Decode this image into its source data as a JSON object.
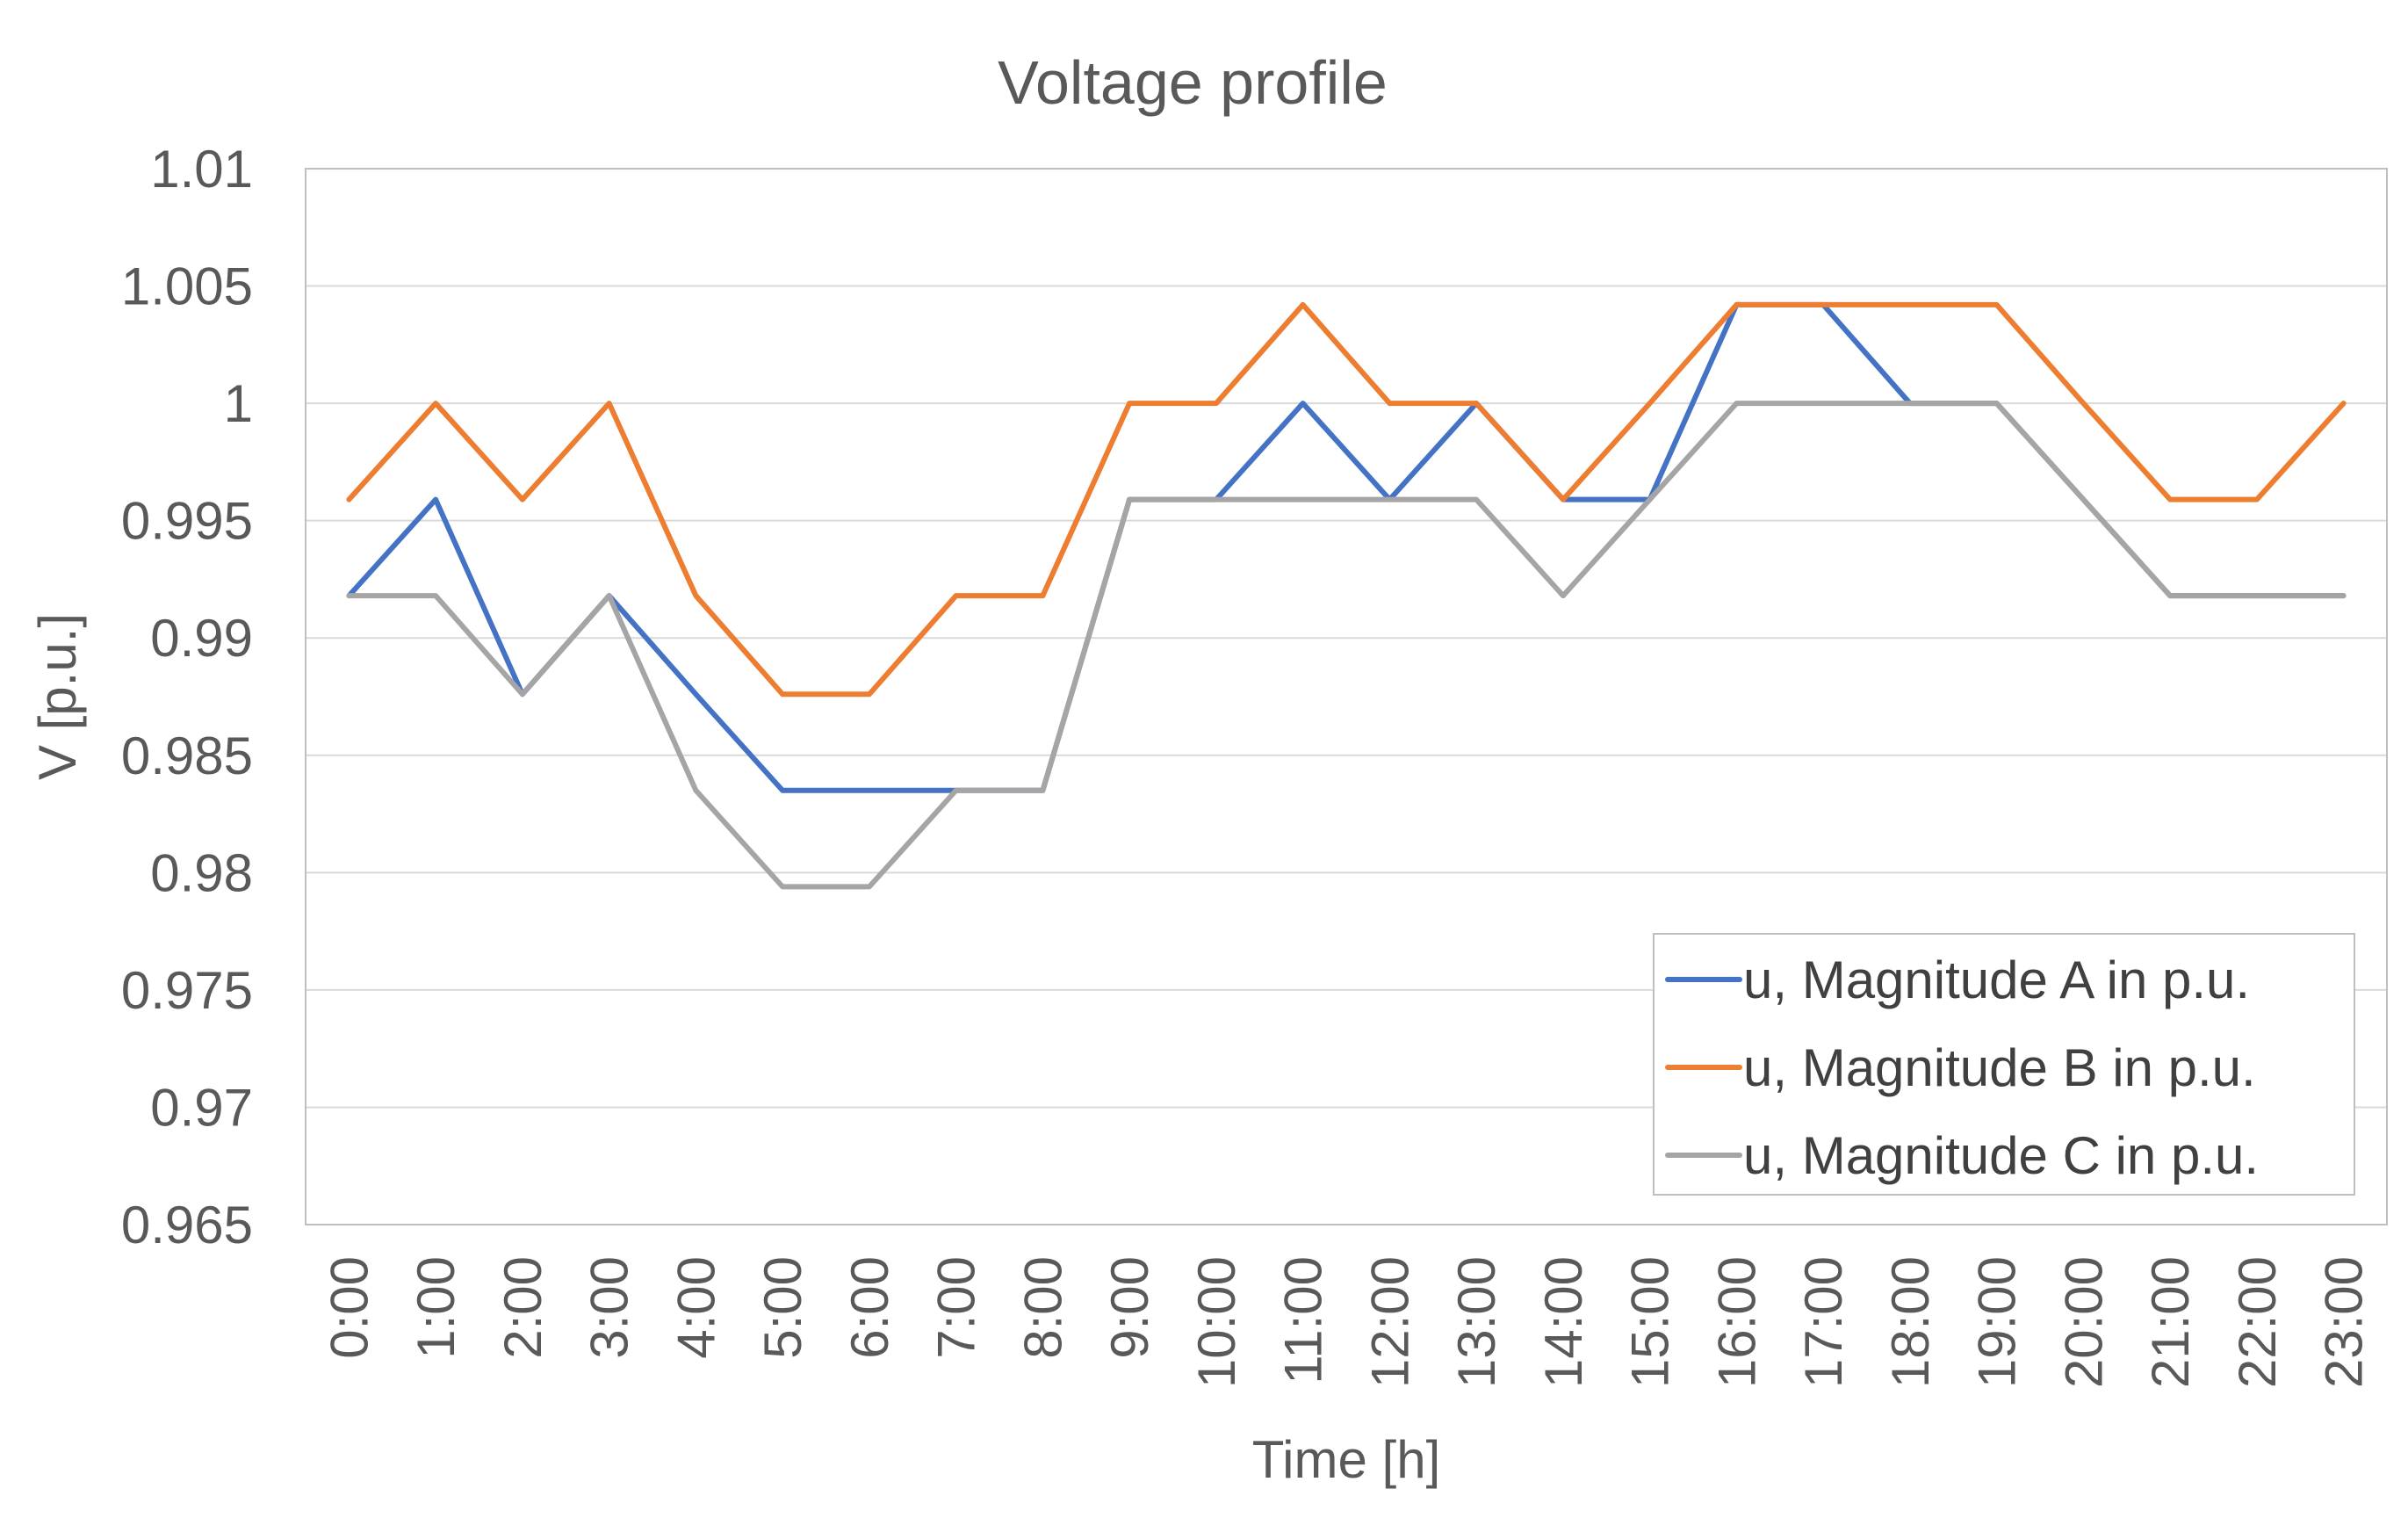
{
  "chart_data": {
    "type": "line",
    "title": "Voltage profile",
    "xlabel": "Time [h]",
    "ylabel": "V [p.u.]",
    "ylim": [
      0.965,
      1.01
    ],
    "ytick_values": [
      0.965,
      0.97,
      0.975,
      0.98,
      0.985,
      0.99,
      0.995,
      1,
      1.005,
      1.01
    ],
    "ytick_labels": [
      "0.965",
      "0.97",
      "0.975",
      "0.98",
      "0.985",
      "0.99",
      "0.995",
      "1",
      "1.005",
      "1.01"
    ],
    "grid": true,
    "legend_position": "bottom-right",
    "categories": [
      "0:00",
      "1:00",
      "2:00",
      "3:00",
      "4:00",
      "5:00",
      "6:00",
      "7:00",
      "8:00",
      "9:00",
      "10:00",
      "11:00",
      "12:00",
      "13:00",
      "14:00",
      "15:00",
      "16:00",
      "17:00",
      "18:00",
      "19:00",
      "20:00",
      "21:00",
      "22:00",
      "23:00"
    ],
    "series": [
      {
        "name": "u, Magnitude A in p.u.",
        "color": "#4472C4",
        "values": [
          0.9918,
          0.9959,
          0.9876,
          0.9918,
          0.9876,
          0.9835,
          0.9835,
          0.9835,
          0.9835,
          0.9959,
          0.9959,
          1.0,
          0.9959,
          1.0,
          0.9959,
          0.9959,
          1.0042,
          1.0042,
          1.0,
          1.0,
          0.9959,
          0.9918,
          0.9918,
          0.9918
        ]
      },
      {
        "name": "u, Magnitude B in p.u.",
        "color": "#ED7D31",
        "values": [
          0.9959,
          1.0,
          0.9959,
          1.0,
          0.9918,
          0.9876,
          0.9876,
          0.9918,
          0.9918,
          1.0,
          1.0,
          1.0042,
          1.0,
          1.0,
          0.9959,
          1.0,
          1.0042,
          1.0042,
          1.0042,
          1.0042,
          1.0,
          0.9959,
          0.9959,
          1.0
        ]
      },
      {
        "name": "u, Magnitude C in p.u.",
        "color": "#A5A5A5",
        "values": [
          0.9918,
          0.9918,
          0.9876,
          0.9918,
          0.9835,
          0.9794,
          0.9794,
          0.9835,
          0.9835,
          0.9959,
          0.9959,
          0.9959,
          0.9959,
          0.9959,
          0.9918,
          0.9959,
          1.0,
          1.0,
          1.0,
          1.0,
          0.9959,
          0.9918,
          0.9918,
          0.9918
        ]
      }
    ]
  }
}
